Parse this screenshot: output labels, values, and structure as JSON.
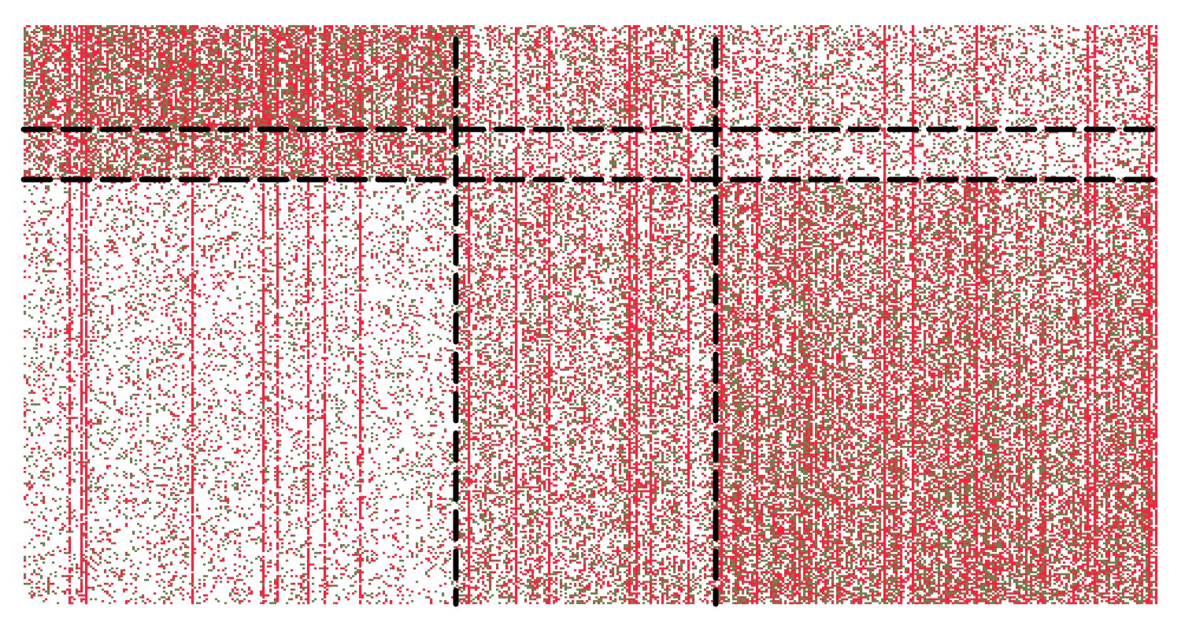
{
  "chart_data": {
    "type": "heatmap",
    "title": "",
    "xlabel": "",
    "ylabel": "",
    "rows": 300,
    "cols": 480,
    "background_color": "#ffffff",
    "categories": [
      {
        "color": "#ff1f3a",
        "density_profile": "red"
      },
      {
        "color": "#6e7f4a",
        "density_profile": "olive"
      }
    ],
    "column_blocks": [
      {
        "col_start": 0,
        "col_end": 183
      },
      {
        "col_start": 183,
        "col_end": 293
      },
      {
        "col_start": 293,
        "col_end": 480
      }
    ],
    "row_blocks": [
      {
        "row_start": 0,
        "row_end": 54
      },
      {
        "row_start": 54,
        "row_end": 80
      },
      {
        "row_start": 80,
        "row_end": 300
      }
    ],
    "separators": {
      "vertical_cols": [
        183,
        293
      ],
      "horizontal_rows": [
        54,
        80
      ],
      "style": "dashed",
      "color": "#000000"
    },
    "grid": false,
    "legend": "none",
    "axes_visible": false
  }
}
